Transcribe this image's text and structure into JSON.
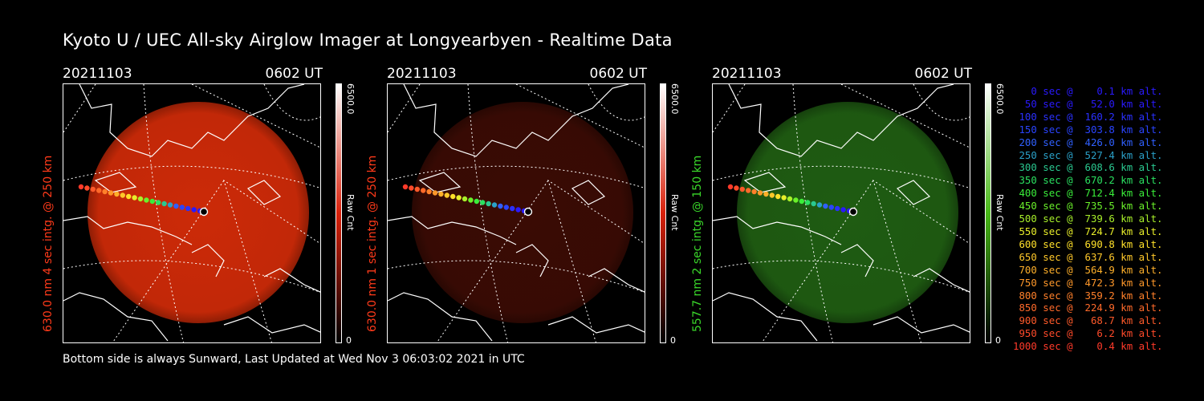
{
  "title": "Kyoto U / UEC All-sky Airglow Imager at Longyearbyen - Realtime Data",
  "footer": "Bottom side is always Sunward, Last Updated at Wed Nov  3 06:03:02 2021 in UTC",
  "panels": [
    {
      "date": "20211103",
      "time": "0602 UT",
      "ylabel": "630.0 nm 4 sec intg. @ 250 km",
      "ylabel_color": "#ff3a1a",
      "cbar_max": "6500.0",
      "cbar_unit": "Raw Cnt",
      "cbar_min": "0",
      "cbar_color": "#d8200a",
      "image_color": "#cc2a08",
      "image_opacity": 1.0
    },
    {
      "date": "20211103",
      "time": "0602 UT",
      "ylabel": "630.0 nm 1 sec intg. @ 250 km",
      "ylabel_color": "#ff3a1a",
      "cbar_max": "6500.0",
      "cbar_unit": "Raw Cnt",
      "cbar_min": "0",
      "cbar_color": "#d8200a",
      "image_color": "#3a0b04",
      "image_opacity": 1.0
    },
    {
      "date": "20211103",
      "time": "0602 UT",
      "ylabel": "557.7 nm 2 sec intg. @ 150 km",
      "ylabel_color": "#3ad82a",
      "cbar_max": "6500.0",
      "cbar_unit": "Raw Cnt",
      "cbar_min": "0",
      "cbar_color": "#48b818",
      "image_color": "#1f5c12",
      "image_opacity": 1.0
    }
  ],
  "legend": [
    {
      "text": "   0 sec @    0.1 km alt.",
      "color": "#2a1aff"
    },
    {
      "text": "  50 sec @   52.0 km alt.",
      "color": "#2a1aff"
    },
    {
      "text": " 100 sec @  160.2 km alt.",
      "color": "#2a30ff"
    },
    {
      "text": " 150 sec @  303.8 km alt.",
      "color": "#2a44ff"
    },
    {
      "text": " 200 sec @  426.0 km alt.",
      "color": "#3060ff"
    },
    {
      "text": " 250 sec @  527.4 km alt.",
      "color": "#2aa0c8"
    },
    {
      "text": " 300 sec @  608.6 km alt.",
      "color": "#2ac890"
    },
    {
      "text": " 350 sec @  670.2 km alt.",
      "color": "#2ae060"
    },
    {
      "text": " 400 sec @  712.4 km alt.",
      "color": "#3aee3a"
    },
    {
      "text": " 450 sec @  735.5 km alt.",
      "color": "#6af02a"
    },
    {
      "text": " 500 sec @  739.6 km alt.",
      "color": "#a8f02a"
    },
    {
      "text": " 550 sec @  724.7 km alt.",
      "color": "#e8ee2a"
    },
    {
      "text": " 600 sec @  690.8 km alt.",
      "color": "#ffe02a"
    },
    {
      "text": " 650 sec @  637.6 km alt.",
      "color": "#ffc82a"
    },
    {
      "text": " 700 sec @  564.9 km alt.",
      "color": "#ffb02a"
    },
    {
      "text": " 750 sec @  472.3 km alt.",
      "color": "#ff982a"
    },
    {
      "text": " 800 sec @  359.2 km alt.",
      "color": "#ff802a"
    },
    {
      "text": " 850 sec @  224.9 km alt.",
      "color": "#ff6a2a"
    },
    {
      "text": " 900 sec @   68.7 km alt.",
      "color": "#ff5a2a"
    },
    {
      "text": " 950 sec @    6.2 km alt.",
      "color": "#ff4a2a"
    },
    {
      "text": "1000 sec @    0.4 km alt.",
      "color": "#ff3a2a"
    }
  ]
}
